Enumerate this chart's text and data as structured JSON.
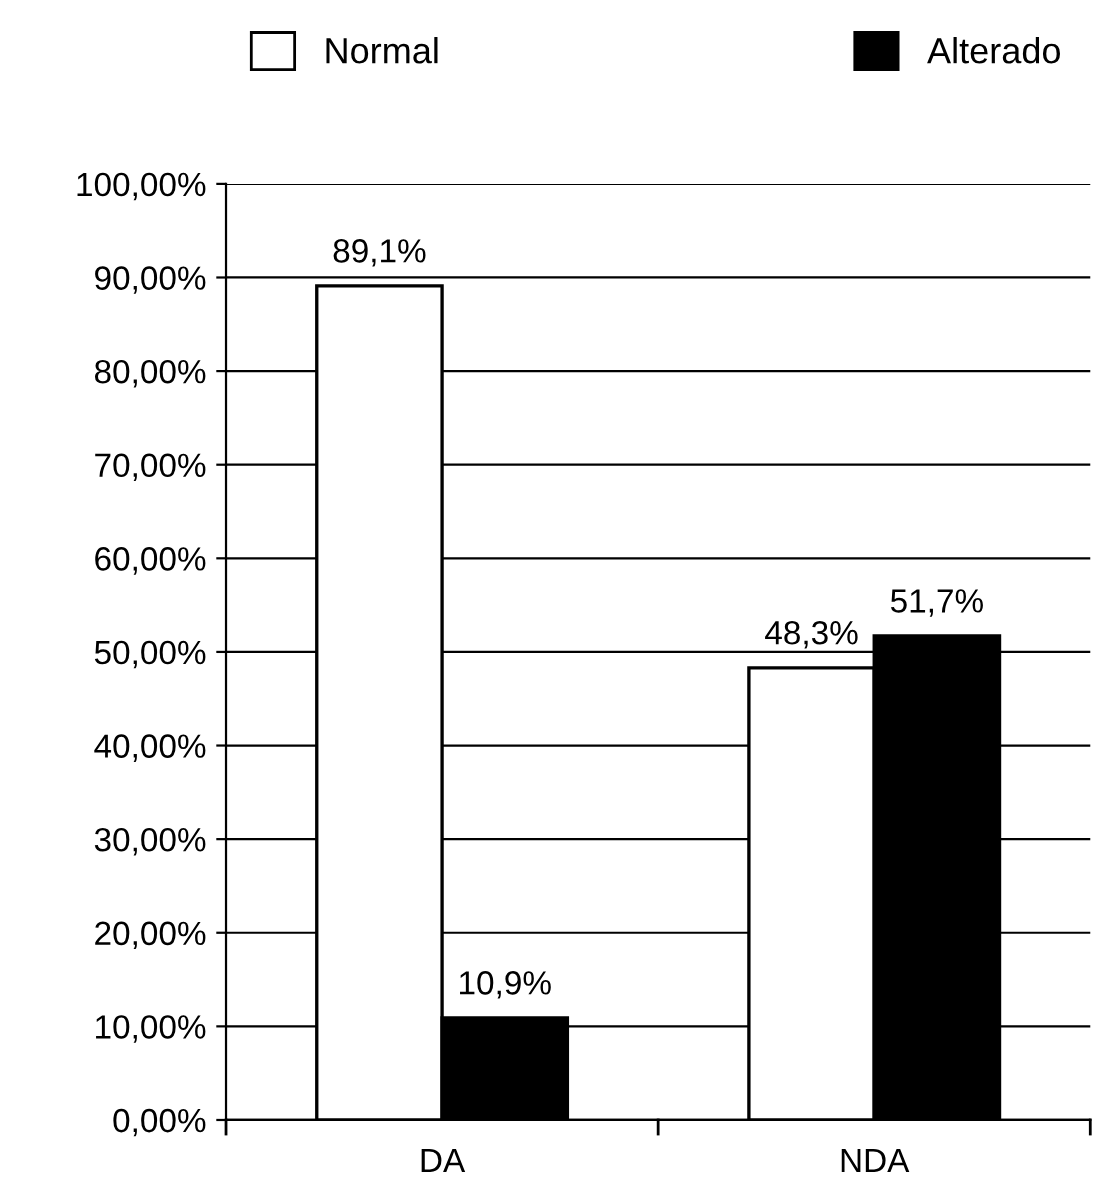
{
  "chart_data": {
    "type": "bar",
    "categories": [
      "DA",
      "NDA"
    ],
    "series": [
      {
        "name": "Normal",
        "color": "#ffffff",
        "values": [
          89.1,
          48.3
        ],
        "value_labels": [
          "89,1%",
          "48,3%"
        ]
      },
      {
        "name": "Alterado",
        "color": "#000000",
        "values": [
          10.9,
          51.7
        ],
        "value_labels": [
          "10,9%",
          "51,7%"
        ]
      }
    ],
    "ylim": [
      0,
      100
    ],
    "yticks": [
      {
        "value": 0,
        "label": "0,00%"
      },
      {
        "value": 10,
        "label": "10,00%"
      },
      {
        "value": 20,
        "label": "20,00%"
      },
      {
        "value": 30,
        "label": "30,00%"
      },
      {
        "value": 40,
        "label": "40,00%"
      },
      {
        "value": 50,
        "label": "50,00%"
      },
      {
        "value": 60,
        "label": "60,00%"
      },
      {
        "value": 70,
        "label": "70,00%"
      },
      {
        "value": 80,
        "label": "80,00%"
      },
      {
        "value": 90,
        "label": "90,00%"
      },
      {
        "value": 100,
        "label": "100,00%"
      }
    ],
    "grid": "y",
    "legend": "top"
  }
}
